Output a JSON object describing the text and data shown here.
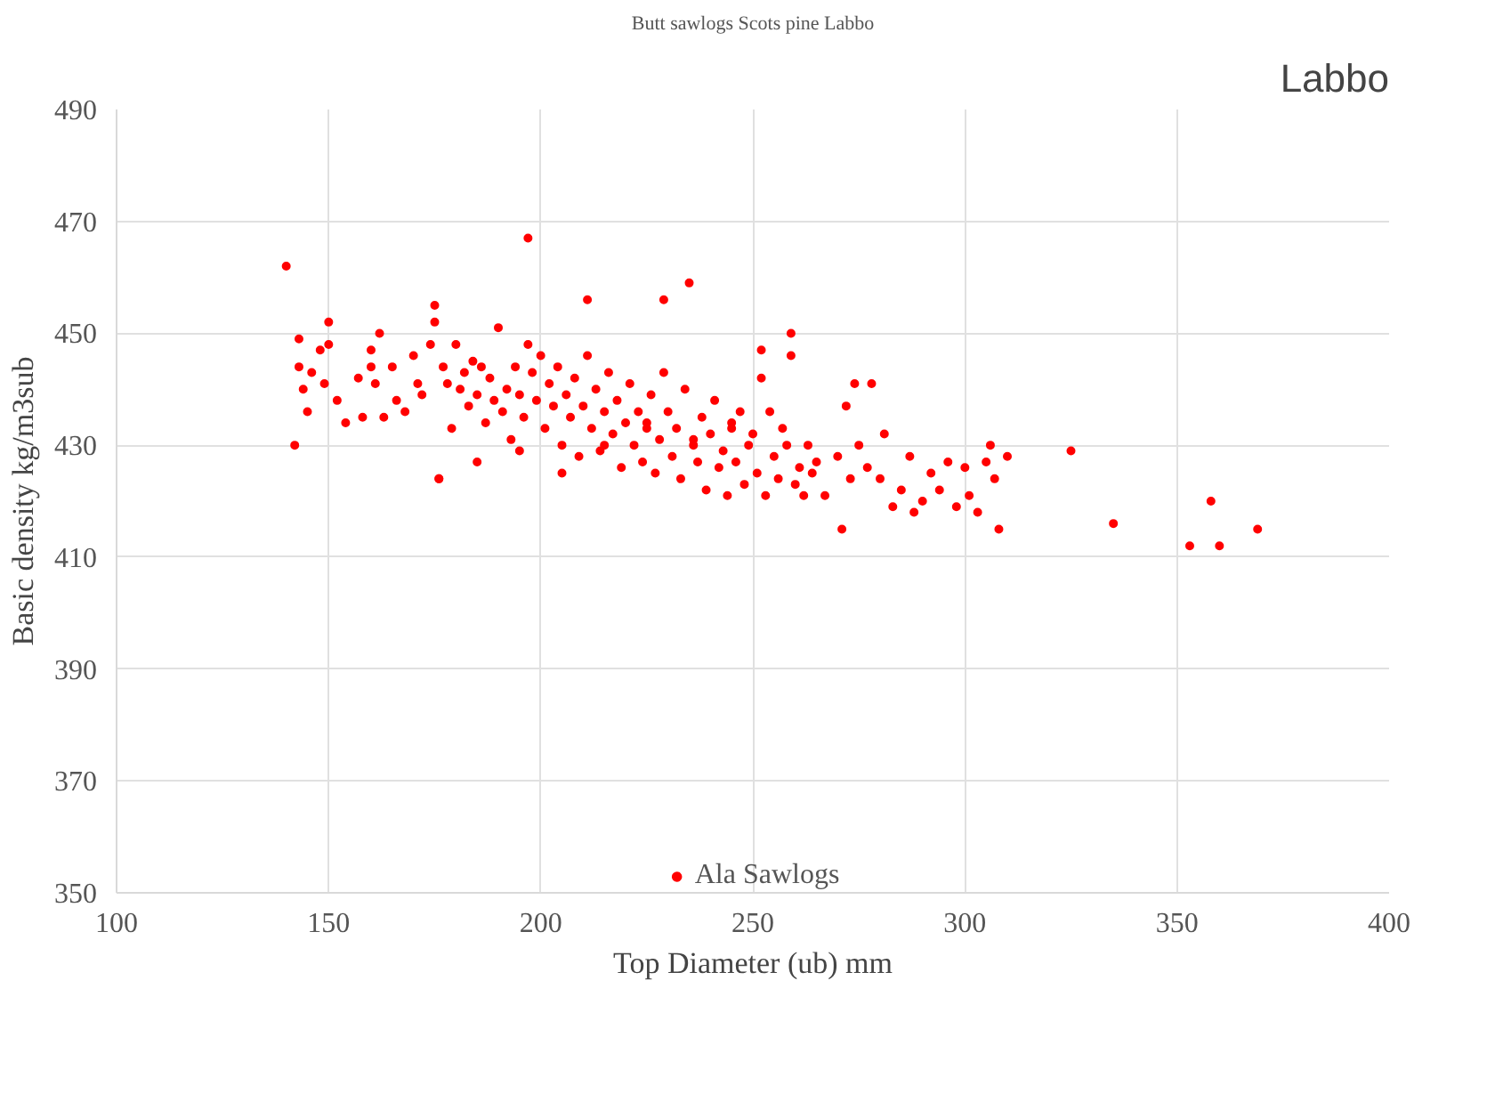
{
  "chart_data": {
    "type": "scatter",
    "title": "Butt sawlogs Scots pine Labbo",
    "annotations": [
      "Labbo"
    ],
    "xlabel": "Top Diameter (ub) mm",
    "ylabel": "Basic density kg/m3sub",
    "xlim": [
      100,
      400
    ],
    "ylim": [
      350,
      490
    ],
    "xticks": [
      100,
      150,
      200,
      250,
      300,
      350,
      400
    ],
    "yticks": [
      350,
      370,
      390,
      410,
      430,
      450,
      470,
      490
    ],
    "grid": true,
    "legend": "bottom",
    "marker": "circle",
    "series": [
      {
        "name": "Ala Sawlogs",
        "color": "#ff0000",
        "x": [
          140,
          142,
          143,
          144,
          145,
          146,
          148,
          149,
          150,
          152,
          154,
          157,
          158,
          160,
          161,
          162,
          163,
          165,
          166,
          168,
          170,
          171,
          172,
          174,
          175,
          175,
          176,
          177,
          178,
          179,
          180,
          181,
          182,
          183,
          184,
          185,
          186,
          187,
          188,
          189,
          190,
          191,
          192,
          193,
          194,
          195,
          196,
          197,
          198,
          199,
          200,
          201,
          202,
          203,
          204,
          205,
          206,
          207,
          208,
          209,
          210,
          211,
          212,
          213,
          214,
          215,
          216,
          217,
          218,
          219,
          220,
          221,
          222,
          223,
          224,
          225,
          226,
          227,
          228,
          229,
          230,
          231,
          232,
          233,
          234,
          235,
          236,
          237,
          238,
          239,
          240,
          241,
          242,
          243,
          244,
          245,
          246,
          247,
          248,
          249,
          250,
          251,
          252,
          253,
          254,
          255,
          256,
          257,
          258,
          259,
          260,
          261,
          262,
          263,
          264,
          265,
          267,
          270,
          271,
          272,
          273,
          274,
          275,
          277,
          278,
          280,
          281,
          283,
          285,
          287,
          288,
          290,
          292,
          294,
          296,
          298,
          300,
          301,
          303,
          305,
          306,
          307,
          308,
          310,
          325,
          335,
          353,
          358,
          360,
          369,
          176,
          197,
          211,
          229,
          236,
          259,
          252,
          143,
          150,
          160,
          185,
          195,
          205,
          215,
          225,
          245
        ],
        "values": [
          462,
          430,
          444,
          440,
          436,
          443,
          447,
          441,
          452,
          438,
          434,
          442,
          435,
          447,
          441,
          450,
          435,
          444,
          438,
          436,
          446,
          441,
          439,
          448,
          455,
          452,
          424,
          444,
          441,
          433,
          448,
          440,
          443,
          437,
          445,
          439,
          444,
          434,
          442,
          438,
          451,
          436,
          440,
          431,
          444,
          439,
          435,
          467,
          443,
          438,
          446,
          433,
          441,
          437,
          444,
          430,
          439,
          435,
          442,
          428,
          437,
          456,
          433,
          440,
          429,
          436,
          443,
          432,
          438,
          426,
          434,
          441,
          430,
          436,
          427,
          433,
          439,
          425,
          431,
          456,
          436,
          428,
          433,
          424,
          440,
          459,
          430,
          427,
          435,
          422,
          432,
          438,
          426,
          429,
          421,
          434,
          427,
          436,
          423,
          430,
          432,
          425,
          447,
          421,
          436,
          428,
          424,
          433,
          430,
          450,
          423,
          426,
          421,
          430,
          425,
          427,
          421,
          428,
          415,
          437,
          424,
          441,
          430,
          426,
          441,
          424,
          432,
          419,
          422,
          428,
          418,
          420,
          425,
          422,
          427,
          419,
          426,
          421,
          418,
          427,
          430,
          424,
          415,
          428,
          429,
          416,
          412,
          420,
          412,
          415,
          424,
          448,
          446,
          443,
          431,
          446,
          442,
          449,
          448,
          444,
          427,
          429,
          425,
          430,
          434,
          433
        ]
      }
    ]
  }
}
